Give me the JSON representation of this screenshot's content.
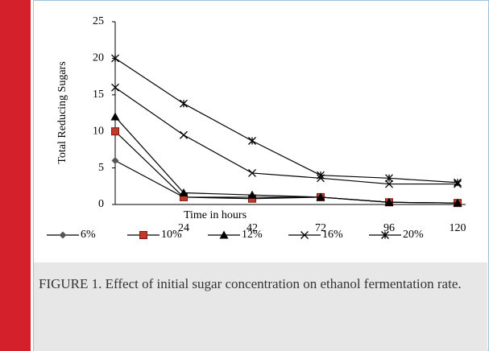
{
  "chart_data": {
    "type": "line",
    "categories": [
      null,
      "24",
      "42",
      "72",
      "96",
      "120"
    ],
    "series": [
      {
        "name": "6%",
        "color": "#000000",
        "marker": "diamond",
        "marker_color": "#555555",
        "values": [
          6,
          1,
          1,
          1,
          0.3,
          0.2
        ]
      },
      {
        "name": "10%",
        "color": "#000000",
        "marker": "square",
        "marker_color": "#c0392b",
        "values": [
          10,
          1,
          0.8,
          1,
          0.3,
          0.2
        ]
      },
      {
        "name": "12%",
        "color": "#000000",
        "marker": "triangle",
        "marker_color": "#000000",
        "values": [
          12,
          1.6,
          1.3,
          1,
          0.3,
          0.2
        ]
      },
      {
        "name": "16%",
        "color": "#000000",
        "marker": "x",
        "marker_color": "#000000",
        "values": [
          16,
          9.5,
          4.3,
          3.6,
          2.8,
          2.8
        ]
      },
      {
        "name": "20%",
        "color": "#000000",
        "marker": "star",
        "marker_color": "#000000",
        "values": [
          20,
          13.8,
          8.7,
          4,
          3.6,
          3
        ]
      }
    ],
    "x_label": "Time in hours",
    "y_label": "Total Reducing Sugars",
    "ylim": [
      0,
      25
    ],
    "yticks": [
      0,
      5,
      10,
      15,
      20,
      25
    ],
    "legend": "bottom"
  },
  "caption": "FIGURE 1. Effect of initial sugar concentration on ethanol fermentation rate."
}
